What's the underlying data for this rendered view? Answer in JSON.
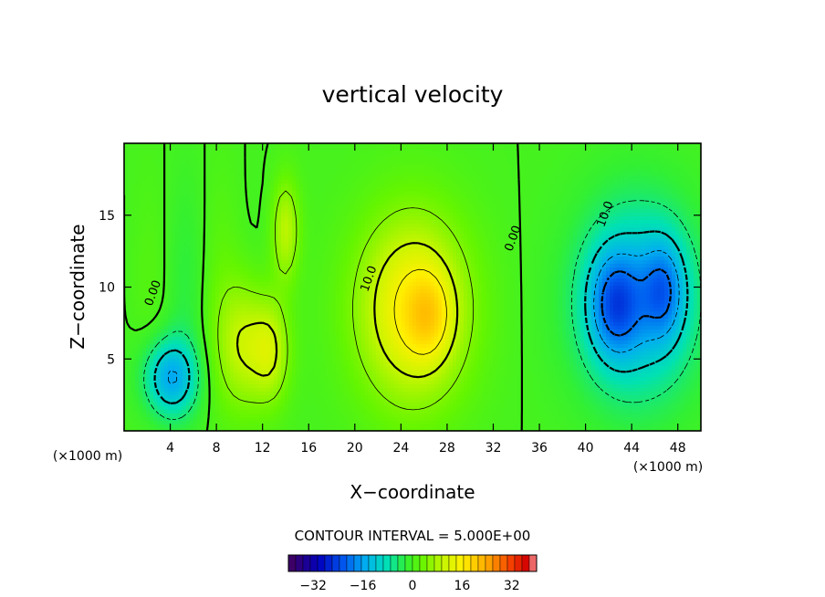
{
  "chart_data": {
    "type": "heatmap",
    "title": "vertical velocity",
    "xlabel": "X−coordinate",
    "ylabel": "Z−coordinate",
    "x_unit": "(×1000 m)",
    "y_unit": "(×1000 m)",
    "xlim": [
      0,
      50
    ],
    "ylim": [
      0,
      20
    ],
    "x_ticks": [
      4,
      8,
      12,
      16,
      20,
      24,
      28,
      32,
      36,
      40,
      44,
      48
    ],
    "y_ticks": [
      5,
      10,
      15
    ],
    "colorbar": {
      "min": -40,
      "max": 40,
      "ticks": [
        -32,
        -16,
        0,
        16,
        32
      ],
      "tick_labels": [
        "−32",
        "−16",
        "0",
        "16",
        "32"
      ]
    },
    "contour_interval_text": "CONTOUR INTERVAL = 5.000E+00",
    "contour_labels": [
      {
        "text": "0.00",
        "x": 2.8,
        "y": 9.5
      },
      {
        "text": "10.0",
        "x": 21.5,
        "y": 10.5
      },
      {
        "text": "0.00",
        "x": 34.0,
        "y": 13.3
      },
      {
        "text": "10.0",
        "x": 42.0,
        "y": 15.0
      }
    ],
    "features": [
      {
        "name": "downdraft-left",
        "x": 4.0,
        "y": 3.7,
        "w": -15
      },
      {
        "name": "updraft-12",
        "x": 12.0,
        "y": 5.5,
        "w": 12
      },
      {
        "name": "updraft-26",
        "x": 26.0,
        "y": 8.5,
        "w": 22
      },
      {
        "name": "downdraft-43",
        "x": 42.5,
        "y": 9.0,
        "w": -26
      },
      {
        "name": "downdraft-46",
        "x": 46.5,
        "y": 9.0,
        "w": -22
      }
    ]
  }
}
